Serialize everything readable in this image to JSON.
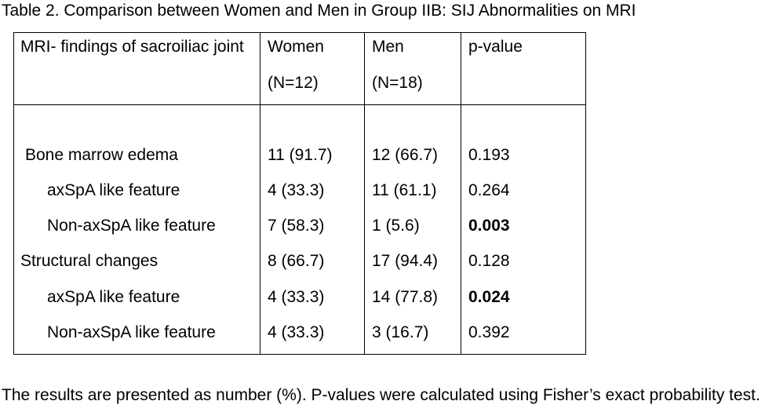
{
  "caption": "Table 2. Comparison between Women and Men in Group IIB: SIJ Abnormalities on MRI",
  "header": {
    "col1": "MRI- findings of sacroiliac joint",
    "women_label": "Women",
    "women_n": "(N=12)",
    "men_label": "Men",
    "men_n": "(N=18)",
    "pvalue_label": "p-value"
  },
  "rows": [
    {
      "label": "Bone marrow edema",
      "women": "11 (91.7)",
      "men": "12 (66.7)",
      "p": "0.193",
      "p_bold": false
    },
    {
      "label": "axSpA like feature",
      "women": "4 (33.3)",
      "men": "11 (61.1)",
      "p": "0.264",
      "p_bold": false
    },
    {
      "label": "Non-axSpA like feature",
      "women": "7 (58.3)",
      "men": "1 (5.6)",
      "p": "0.003",
      "p_bold": true
    },
    {
      "label": "Structural changes",
      "women": "8 (66.7)",
      "men": "17 (94.4)",
      "p": "0.128",
      "p_bold": false
    },
    {
      "label": "axSpA like feature",
      "women": "4 (33.3)",
      "men": "14 (77.8)",
      "p": "0.024",
      "p_bold": true
    },
    {
      "label": "Non-axSpA like feature",
      "women": "4 (33.3)",
      "men": "3 (16.7)",
      "p": "0.392",
      "p_bold": false
    }
  ],
  "footnote": "The results are presented as number (%). P-values were calculated using Fisher’s exact probability test."
}
